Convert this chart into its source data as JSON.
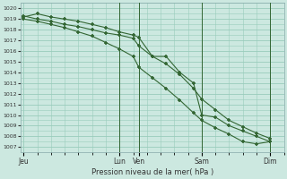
{
  "background_color": "#cce8e0",
  "grid_color": "#99ccbb",
  "line_color": "#336633",
  "vline_color": "#336633",
  "xlabel_text": "Pression niveau de la mer( hPa )",
  "ylim": [
    1006.5,
    1020.5
  ],
  "yticks": [
    1007,
    1008,
    1009,
    1010,
    1011,
    1012,
    1013,
    1014,
    1015,
    1016,
    1017,
    1018,
    1019,
    1020
  ],
  "xtick_positions": [
    0,
    3.5,
    4.2,
    6.5,
    9.0
  ],
  "xtick_labels": [
    "Jeu",
    "Lun",
    "Ven",
    "Sam",
    "Dim"
  ],
  "vline_positions": [
    3.5,
    4.2,
    6.5,
    9.0
  ],
  "line1_x": [
    0,
    0.5,
    1.0,
    1.5,
    2.0,
    2.5,
    3.0,
    3.5,
    4.0,
    4.2,
    4.7,
    5.2,
    5.7,
    6.2,
    6.5,
    7.0,
    7.5,
    8.0,
    8.5,
    9.0
  ],
  "line1_y": [
    1019.2,
    1019.5,
    1019.2,
    1019.0,
    1018.8,
    1018.5,
    1018.2,
    1017.8,
    1017.5,
    1017.3,
    1015.5,
    1015.5,
    1014.0,
    1013.0,
    1010.0,
    1009.8,
    1009.0,
    1008.5,
    1008.0,
    1007.5
  ],
  "line2_x": [
    0,
    0.5,
    1.0,
    1.5,
    2.0,
    2.5,
    3.0,
    3.5,
    4.0,
    4.2,
    4.7,
    5.2,
    5.7,
    6.2,
    6.5,
    7.0,
    7.5,
    8.0,
    8.5,
    9.0
  ],
  "line2_y": [
    1019.0,
    1018.8,
    1018.5,
    1018.2,
    1017.8,
    1017.4,
    1016.8,
    1016.2,
    1015.5,
    1014.5,
    1013.5,
    1012.5,
    1011.4,
    1010.2,
    1009.5,
    1008.8,
    1008.2,
    1007.5,
    1007.3,
    1007.5
  ],
  "line3_x": [
    0,
    0.5,
    1.0,
    1.5,
    2.0,
    2.5,
    3.0,
    3.5,
    4.0,
    4.2,
    4.7,
    5.2,
    5.7,
    6.2,
    6.5,
    7.0,
    7.5,
    8.0,
    8.5,
    9.0
  ],
  "line3_y": [
    1019.3,
    1019.0,
    1018.8,
    1018.5,
    1018.3,
    1018.0,
    1017.7,
    1017.5,
    1017.2,
    1016.5,
    1015.5,
    1014.8,
    1013.8,
    1012.5,
    1011.5,
    1010.5,
    1009.5,
    1008.9,
    1008.3,
    1007.8
  ],
  "figsize": [
    3.2,
    2.0
  ],
  "dpi": 100
}
